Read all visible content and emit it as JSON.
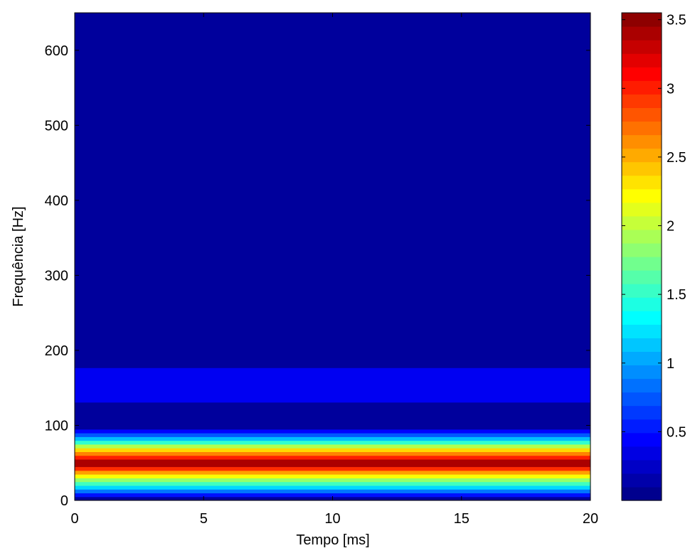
{
  "chart_data": {
    "type": "heatmap",
    "plot_style": "filled-contour",
    "colormap": "jet",
    "title": "",
    "xlabel": "Tempo [ms]",
    "ylabel": "Frequência [Hz]",
    "xlim": [
      0,
      20
    ],
    "ylim": [
      0,
      650
    ],
    "xticks": [
      0,
      5,
      10,
      15,
      20
    ],
    "xtick_labels": [
      "0",
      "5",
      "10",
      "15",
      "20"
    ],
    "yticks": [
      0,
      100,
      200,
      300,
      400,
      500,
      600
    ],
    "ytick_labels": [
      "0",
      "100",
      "200",
      "300",
      "400",
      "500",
      "600"
    ],
    "grid": false,
    "colorbar": {
      "range": [
        0,
        3.55
      ],
      "ticks": [
        0.5,
        1,
        1.5,
        2,
        2.5,
        3,
        3.5
      ],
      "tick_labels": [
        "0.5",
        "1",
        "1.5",
        "2",
        "2.5",
        "3",
        "3.5"
      ],
      "levels": 36
    },
    "bands": [
      {
        "freq_low": 0,
        "freq_high": 5,
        "value": 0.1
      },
      {
        "freq_low": 5,
        "freq_high": 10,
        "value": 0.5
      },
      {
        "freq_low": 10,
        "freq_high": 15,
        "value": 0.85
      },
      {
        "freq_low": 15,
        "freq_high": 20,
        "value": 1.2
      },
      {
        "freq_low": 20,
        "freq_high": 25,
        "value": 1.55
      },
      {
        "freq_low": 25,
        "freq_high": 30,
        "value": 1.85
      },
      {
        "freq_low": 30,
        "freq_high": 35,
        "value": 2.2
      },
      {
        "freq_low": 35,
        "freq_high": 40,
        "value": 2.55
      },
      {
        "freq_low": 40,
        "freq_high": 45,
        "value": 2.95
      },
      {
        "freq_low": 45,
        "freq_high": 55,
        "value": 3.4
      },
      {
        "freq_low": 55,
        "freq_high": 60,
        "value": 3.0
      },
      {
        "freq_low": 60,
        "freq_high": 65,
        "value": 2.65
      },
      {
        "freq_low": 65,
        "freq_high": 70,
        "value": 2.35
      },
      {
        "freq_low": 70,
        "freq_high": 75,
        "value": 1.95
      },
      {
        "freq_low": 75,
        "freq_high": 80,
        "value": 1.5
      },
      {
        "freq_low": 80,
        "freq_high": 85,
        "value": 1.1
      },
      {
        "freq_low": 85,
        "freq_high": 90,
        "value": 0.75
      },
      {
        "freq_low": 90,
        "freq_high": 95,
        "value": 0.45
      },
      {
        "freq_low": 95,
        "freq_high": 131,
        "value": 0.1
      },
      {
        "freq_low": 131,
        "freq_high": 177,
        "value": 0.4
      },
      {
        "freq_low": 177,
        "freq_high": 650,
        "value": 0.1
      }
    ]
  }
}
